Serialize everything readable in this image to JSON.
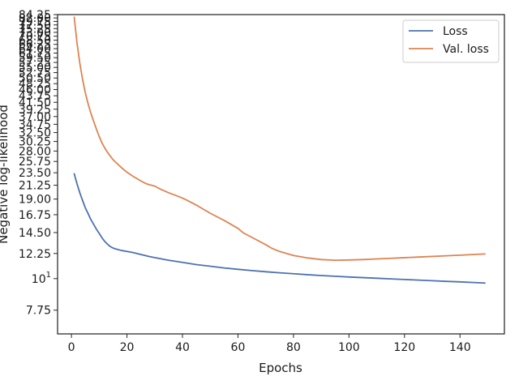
{
  "chart_data": {
    "type": "line",
    "xlabel": "Epochs",
    "ylabel": "Negative log-likelihood",
    "xlim": [
      -5,
      156
    ],
    "ylim": [
      6.4,
      84.25
    ],
    "yscale": "log",
    "grid": false,
    "legend_position": "top-right",
    "x_ticks": [
      0,
      20,
      40,
      60,
      80,
      100,
      120,
      140
    ],
    "y_ticks": [
      {
        "value": 7.75,
        "label": "7.75"
      },
      {
        "value": 10,
        "label": "10",
        "sup": "1"
      },
      {
        "value": 12.25,
        "label": "12.25"
      },
      {
        "value": 14.5,
        "label": "14.50"
      },
      {
        "value": 16.75,
        "label": "16.75"
      },
      {
        "value": 19.0,
        "label": "19.00"
      },
      {
        "value": 21.25,
        "label": "21.25"
      },
      {
        "value": 23.5,
        "label": "23.50"
      },
      {
        "value": 25.75,
        "label": "25.75"
      },
      {
        "value": 28.0,
        "label": "28.00"
      },
      {
        "value": 30.25,
        "label": "30.25"
      },
      {
        "value": 32.5,
        "label": "32.50"
      },
      {
        "value": 34.75,
        "label": "34.75"
      },
      {
        "value": 37.0,
        "label": "37.00"
      },
      {
        "value": 39.25,
        "label": "39.25"
      },
      {
        "value": 41.5,
        "label": "41.50"
      },
      {
        "value": 43.75,
        "label": "43.75"
      },
      {
        "value": 46.0,
        "label": "46.00"
      },
      {
        "value": 48.25,
        "label": "48.25"
      },
      {
        "value": 50.5,
        "label": "50.50"
      },
      {
        "value": 52.75,
        "label": "52.75"
      },
      {
        "value": 55.0,
        "label": "55.00"
      },
      {
        "value": 57.25,
        "label": "57.25"
      },
      {
        "value": 59.5,
        "label": "59.50"
      },
      {
        "value": 61.75,
        "label": "61.75"
      },
      {
        "value": 64.0,
        "label": "64.00"
      },
      {
        "value": 66.25,
        "label": "66.25"
      },
      {
        "value": 68.5,
        "label": "68.50"
      },
      {
        "value": 70.75,
        "label": "70.75"
      },
      {
        "value": 73.0,
        "label": "73.00"
      },
      {
        "value": 75.25,
        "label": "75.25"
      },
      {
        "value": 77.5,
        "label": "77.50"
      },
      {
        "value": 79.75,
        "label": "79.75"
      },
      {
        "value": 82.0,
        "label": "82.00"
      },
      {
        "value": 84.25,
        "label": "84.25"
      }
    ],
    "series": [
      {
        "name": "Loss",
        "color": "#4c72b0",
        "x": [
          1,
          2,
          3,
          4,
          5,
          6,
          7,
          8,
          9,
          10,
          11,
          12,
          13,
          14,
          15,
          16,
          18,
          20,
          22,
          25,
          28,
          30,
          35,
          40,
          45,
          50,
          55,
          60,
          65,
          70,
          75,
          80,
          85,
          90,
          95,
          100,
          105,
          110,
          115,
          120,
          125,
          130,
          135,
          140,
          145,
          149
        ],
        "y": [
          23.3,
          21.5,
          20.0,
          18.8,
          17.7,
          16.9,
          16.1,
          15.5,
          14.9,
          14.4,
          13.9,
          13.5,
          13.2,
          12.95,
          12.8,
          12.7,
          12.55,
          12.45,
          12.35,
          12.15,
          11.95,
          11.85,
          11.6,
          11.4,
          11.2,
          11.05,
          10.9,
          10.78,
          10.67,
          10.57,
          10.48,
          10.4,
          10.32,
          10.25,
          10.19,
          10.13,
          10.08,
          10.03,
          9.98,
          9.93,
          9.88,
          9.83,
          9.78,
          9.74,
          9.69,
          9.65
        ]
      },
      {
        "name": "Val. loss",
        "color": "#dd8452",
        "x": [
          1,
          2,
          3,
          4,
          5,
          6,
          7,
          8,
          9,
          10,
          11,
          12,
          13,
          15,
          18,
          20,
          22,
          25,
          27,
          28,
          30,
          32,
          35,
          38,
          40,
          42,
          45,
          48,
          50,
          55,
          60,
          62,
          65,
          70,
          72,
          75,
          80,
          85,
          90,
          95,
          100,
          105,
          110,
          115,
          120,
          125,
          130,
          135,
          140,
          145,
          149
        ],
        "y": [
          82.5,
          67.0,
          57.0,
          50.0,
          44.8,
          41.0,
          38.0,
          35.6,
          33.4,
          31.5,
          29.9,
          28.7,
          27.7,
          26.1,
          24.5,
          23.6,
          22.9,
          22.0,
          21.5,
          21.35,
          21.1,
          20.6,
          20.0,
          19.5,
          19.15,
          18.75,
          18.1,
          17.4,
          16.95,
          16.0,
          15.0,
          14.45,
          13.95,
          13.15,
          12.8,
          12.45,
          12.05,
          11.82,
          11.66,
          11.6,
          11.62,
          11.66,
          11.72,
          11.78,
          11.84,
          11.9,
          11.96,
          12.02,
          12.08,
          12.15,
          12.2
        ]
      }
    ]
  }
}
